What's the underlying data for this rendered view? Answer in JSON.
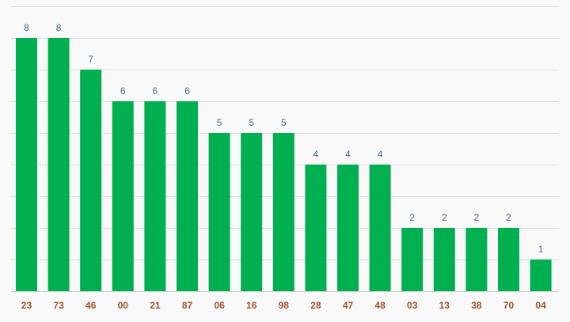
{
  "colors": {
    "bar": "#00b050",
    "value_label": "#4a6a86",
    "category_label": "#a0522d",
    "background": "#f9f9f9"
  },
  "chart_data": {
    "type": "bar",
    "title": "",
    "xlabel": "",
    "ylabel": "",
    "categories": [
      "23",
      "73",
      "46",
      "00",
      "21",
      "87",
      "06",
      "16",
      "98",
      "28",
      "47",
      "48",
      "03",
      "13",
      "38",
      "70",
      "04"
    ],
    "values": [
      8,
      8,
      7,
      6,
      6,
      6,
      5,
      5,
      5,
      4,
      4,
      4,
      2,
      2,
      2,
      2,
      1
    ],
    "ylim": [
      0,
      9
    ],
    "grid": true,
    "legend": "none",
    "data_labels": true
  }
}
